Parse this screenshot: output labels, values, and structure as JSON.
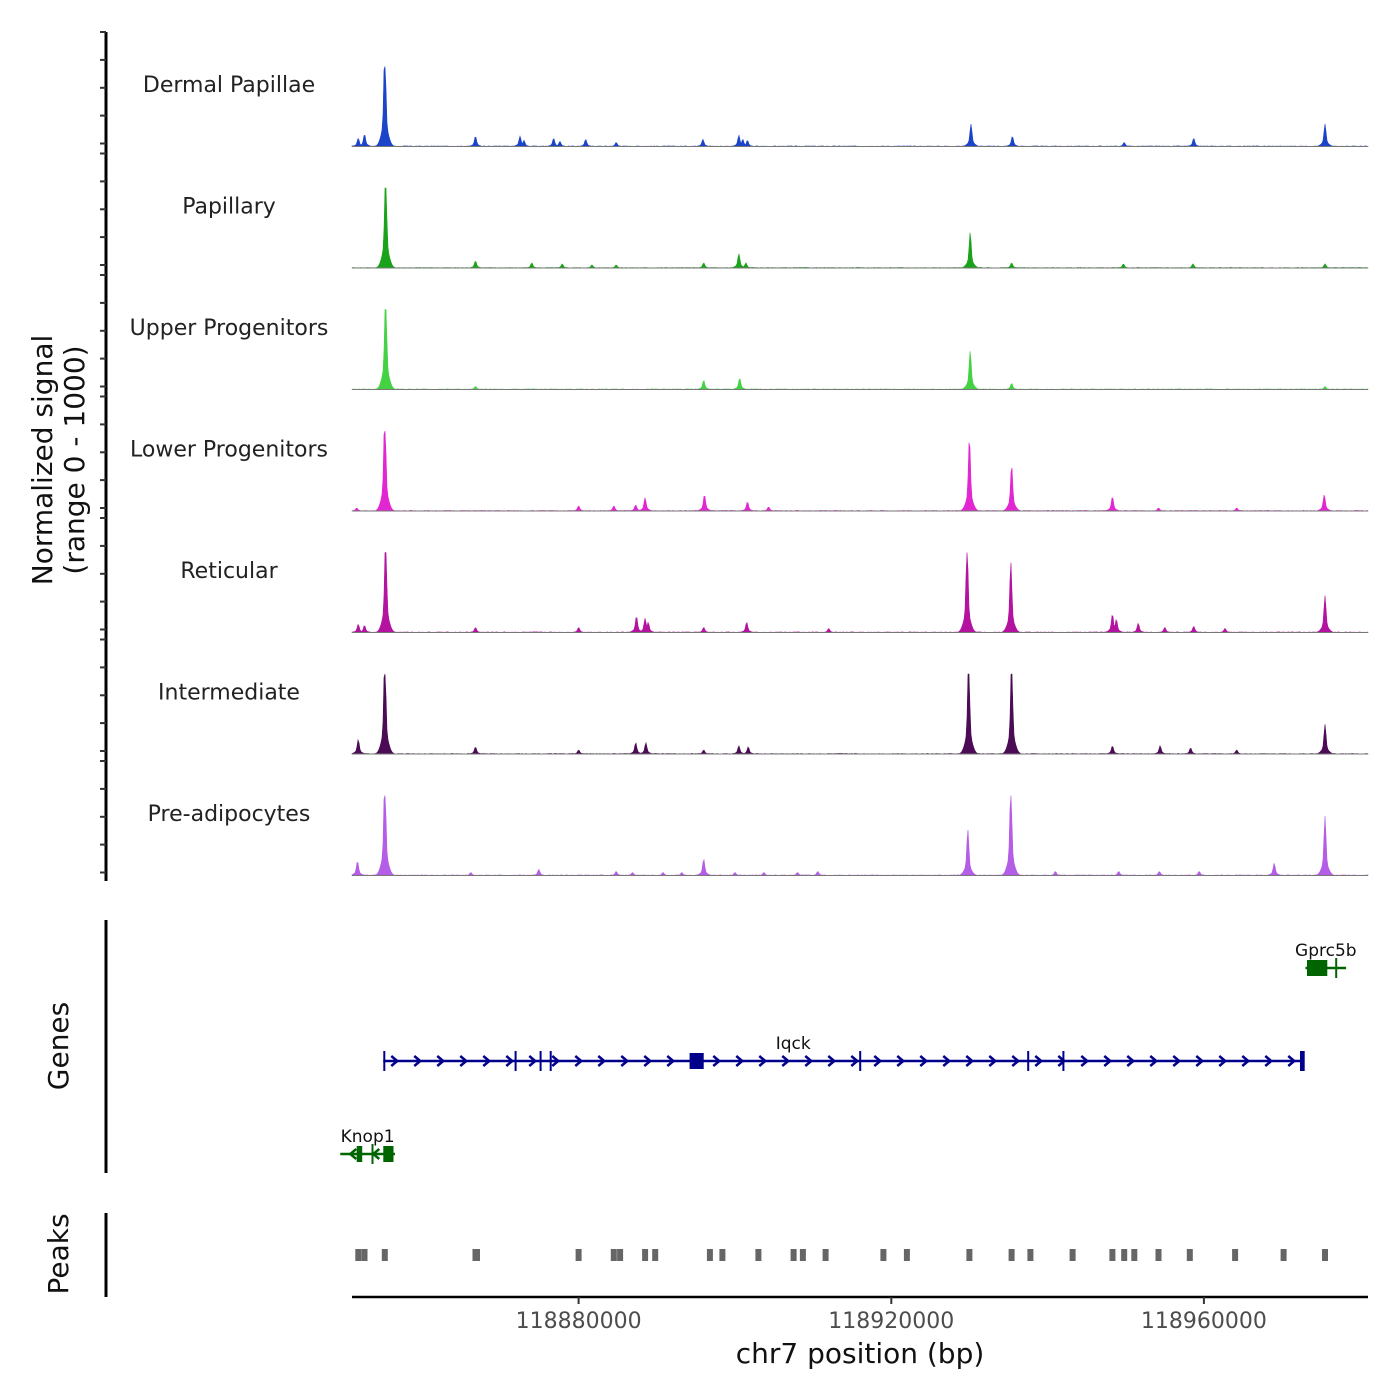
{
  "chart_data": {
    "type": "area",
    "title": "",
    "chromosome": "chr7",
    "xlabel": "chr7 position (bp)",
    "xlim": [
      118851000,
      118981000
    ],
    "xticks": [
      118880000,
      118920000,
      118960000
    ],
    "xtick_labels": [
      "118880000",
      "118920000",
      "118960000"
    ],
    "signal_panel": {
      "ylabel_line1": "Normalized signal",
      "ylabel_line2": "(range 0 - 1000)",
      "ylim": [
        0,
        1000
      ]
    },
    "genes_panel_label": "Genes",
    "peaks_panel_label": "Peaks",
    "peak_positions": [
      118851800,
      118852600,
      118855200,
      118866800,
      118867000,
      118880000,
      118884500,
      118885300,
      118888500,
      118889800,
      118896800,
      118898400,
      118903000,
      118907500,
      118908700,
      118911600,
      118919000,
      118922000,
      118930000,
      118935400,
      118937800,
      118943200,
      118948300,
      118949800,
      118951100,
      118954200,
      118958200,
      118964000,
      118970200,
      118975500
    ],
    "peak_color": "#666666",
    "series": [
      {
        "name": "Dermal Papillae",
        "color": "#1c44c8",
        "peaks": [
          [
            118851800,
            0.08
          ],
          [
            118852600,
            0.12
          ],
          [
            118855200,
            1.0
          ],
          [
            118866800,
            0.1
          ],
          [
            118872500,
            0.1
          ],
          [
            118873000,
            0.06
          ],
          [
            118876800,
            0.08
          ],
          [
            118877600,
            0.05
          ],
          [
            118880900,
            0.07
          ],
          [
            118884800,
            0.04
          ],
          [
            118895900,
            0.07
          ],
          [
            118900500,
            0.11
          ],
          [
            118901000,
            0.07
          ],
          [
            118901600,
            0.06
          ],
          [
            118930200,
            0.22
          ],
          [
            118935500,
            0.1
          ],
          [
            118949800,
            0.04
          ],
          [
            118958700,
            0.08
          ],
          [
            118975500,
            0.22
          ]
        ]
      },
      {
        "name": "Papillary",
        "color": "#1aa31a",
        "peaks": [
          [
            118855300,
            1.0
          ],
          [
            118866800,
            0.07
          ],
          [
            118874000,
            0.05
          ],
          [
            118877900,
            0.04
          ],
          [
            118881700,
            0.03
          ],
          [
            118884800,
            0.03
          ],
          [
            118896000,
            0.05
          ],
          [
            118900500,
            0.14
          ],
          [
            118901400,
            0.05
          ],
          [
            118930100,
            0.35
          ],
          [
            118935400,
            0.05
          ],
          [
            118949700,
            0.04
          ],
          [
            118958600,
            0.04
          ],
          [
            118975500,
            0.04
          ]
        ]
      },
      {
        "name": "Upper Progenitors",
        "color": "#44d244",
        "peaks": [
          [
            118855300,
            1.0
          ],
          [
            118866800,
            0.03
          ],
          [
            118896000,
            0.09
          ],
          [
            118900600,
            0.11
          ],
          [
            118930100,
            0.38
          ],
          [
            118935400,
            0.06
          ],
          [
            118975500,
            0.03
          ]
        ]
      },
      {
        "name": "Lower Progenitors",
        "color": "#e226d2",
        "peaks": [
          [
            118851600,
            0.03
          ],
          [
            118855200,
            1.0
          ],
          [
            118880000,
            0.05
          ],
          [
            118884500,
            0.05
          ],
          [
            118887300,
            0.06
          ],
          [
            118888500,
            0.13
          ],
          [
            118896100,
            0.16
          ],
          [
            118901600,
            0.09
          ],
          [
            118904300,
            0.04
          ],
          [
            118930000,
            0.72
          ],
          [
            118935400,
            0.45
          ],
          [
            118948300,
            0.14
          ],
          [
            118954200,
            0.03
          ],
          [
            118964200,
            0.03
          ],
          [
            118975400,
            0.16
          ]
        ]
      },
      {
        "name": "Reticular",
        "color": "#b3139f",
        "peaks": [
          [
            118851800,
            0.08
          ],
          [
            118852600,
            0.07
          ],
          [
            118855300,
            0.95
          ],
          [
            118866800,
            0.05
          ],
          [
            118880000,
            0.05
          ],
          [
            118887400,
            0.16
          ],
          [
            118888500,
            0.14
          ],
          [
            118888900,
            0.1
          ],
          [
            118896000,
            0.05
          ],
          [
            118901500,
            0.1
          ],
          [
            118912000,
            0.04
          ],
          [
            118929700,
            0.88
          ],
          [
            118935300,
            0.69
          ],
          [
            118948300,
            0.18
          ],
          [
            118948800,
            0.13
          ],
          [
            118951600,
            0.09
          ],
          [
            118955000,
            0.05
          ],
          [
            118958700,
            0.06
          ],
          [
            118962700,
            0.04
          ],
          [
            118975500,
            0.36
          ]
        ]
      },
      {
        "name": "Intermediate",
        "color": "#4b0b55",
        "peaks": [
          [
            118851800,
            0.14
          ],
          [
            118855200,
            1.0
          ],
          [
            118866800,
            0.07
          ],
          [
            118880000,
            0.04
          ],
          [
            118887300,
            0.11
          ],
          [
            118888600,
            0.11
          ],
          [
            118896000,
            0.04
          ],
          [
            118900500,
            0.08
          ],
          [
            118901700,
            0.07
          ],
          [
            118929900,
            0.95
          ],
          [
            118935400,
            0.92
          ],
          [
            118948300,
            0.08
          ],
          [
            118954400,
            0.08
          ],
          [
            118958300,
            0.06
          ],
          [
            118964200,
            0.04
          ],
          [
            118975500,
            0.29
          ]
        ]
      },
      {
        "name": "Pre-adipocytes",
        "color": "#b45de6",
        "peaks": [
          [
            118851700,
            0.14
          ],
          [
            118855200,
            1.0
          ],
          [
            118866200,
            0.03
          ],
          [
            118874900,
            0.06
          ],
          [
            118884800,
            0.04
          ],
          [
            118886900,
            0.03
          ],
          [
            118890800,
            0.03
          ],
          [
            118893200,
            0.03
          ],
          [
            118896000,
            0.16
          ],
          [
            118900000,
            0.03
          ],
          [
            118903700,
            0.03
          ],
          [
            118908000,
            0.03
          ],
          [
            118910600,
            0.04
          ],
          [
            118929800,
            0.45
          ],
          [
            118935300,
            0.88
          ],
          [
            118941000,
            0.04
          ],
          [
            118949100,
            0.04
          ],
          [
            118954300,
            0.04
          ],
          [
            118959400,
            0.04
          ],
          [
            118969000,
            0.12
          ],
          [
            118975500,
            0.58
          ]
        ]
      }
    ],
    "genes": [
      {
        "name": "Gprc5b",
        "strand": "-",
        "color": "#006400",
        "start": 118973000,
        "end": 118978200,
        "row": 0,
        "exons": [
          [
            118973200,
            118975800
          ],
          [
            118976800,
            118977000
          ]
        ]
      },
      {
        "name": "Iqck",
        "strand": "+",
        "color": "#00008b",
        "start": 118855000,
        "end": 118972700,
        "row": 1,
        "exons": [
          [
            118855000,
            118855200
          ],
          [
            118871800,
            118872000
          ],
          [
            118875000,
            118875200
          ],
          [
            118876300,
            118876500
          ],
          [
            118894200,
            118896000
          ],
          [
            118915900,
            118916100
          ],
          [
            118937400,
            118937600
          ],
          [
            118941900,
            118942100
          ],
          [
            118972300,
            118972900
          ]
        ]
      },
      {
        "name": "Knop1",
        "strand": "-",
        "color": "#006400",
        "start": 118849500,
        "end": 118856500,
        "row": 2,
        "exons": [
          [
            118851600,
            118852300
          ],
          [
            118853500,
            118853700
          ],
          [
            118855000,
            118856300
          ]
        ]
      }
    ]
  }
}
